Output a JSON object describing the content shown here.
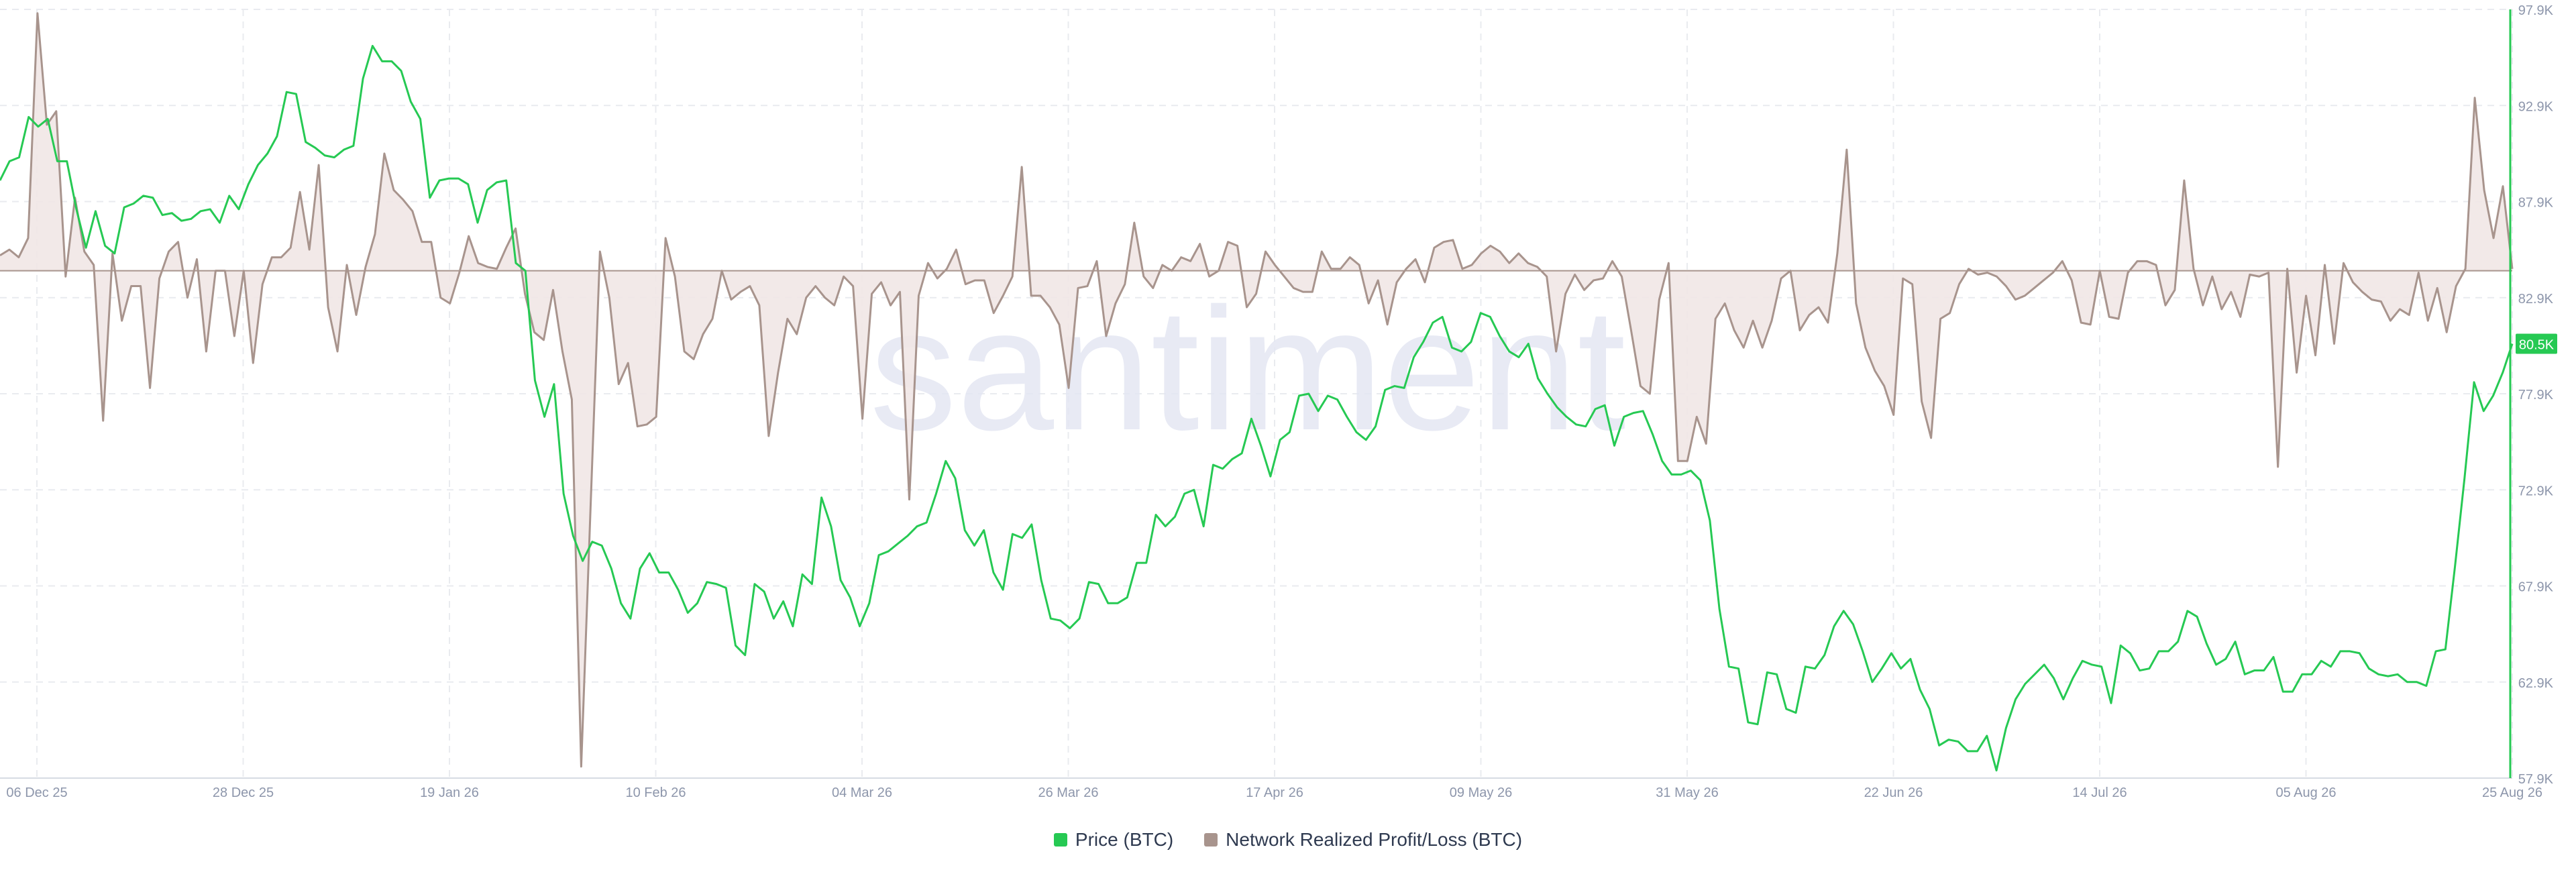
{
  "watermark": "santiment",
  "colors": {
    "price": "#26c953",
    "profit_loss_line": "#a8948d",
    "profit_loss_fill": "#f1e7e6",
    "grid": "#e9ebef",
    "axis_text": "#8d96ab",
    "watermark": "#e4e7f3",
    "current_badge_bg": "#26c953"
  },
  "legend": [
    {
      "label": "Price (BTC)",
      "color": "#26c953"
    },
    {
      "label": "Network Realized Profit/Loss (BTC)",
      "color": "#a8948d"
    }
  ],
  "chart_data": {
    "type": "line",
    "x_ticks": [
      "06 Dec 25",
      "28 Dec 25",
      "19 Jan 26",
      "10 Feb 26",
      "04 Mar 26",
      "26 Mar 26",
      "17 Apr 26",
      "09 May 26",
      "31 May 26",
      "22 Jun 26",
      "14 Jul 26",
      "05 Aug 26",
      "25 Aug 26"
    ],
    "y_ticks": [
      "97.9K",
      "92.9K",
      "87.9K",
      "82.9K",
      "77.9K",
      "72.9K",
      "67.9K",
      "62.9K",
      "57.9K"
    ],
    "ylim": [
      57900,
      97900
    ],
    "y_axis_side": "right",
    "current_price_label": "80.5K",
    "current_price": 80500,
    "x_start": "2025-12-05",
    "x_end": "2026-08-25",
    "grid": true,
    "legend_position": "bottom-center",
    "series": [
      {
        "name": "Price (BTC)",
        "values": [
          89000,
          90000,
          90200,
          92300,
          91800,
          92200,
          90000,
          90000,
          87500,
          85500,
          87400,
          85600,
          85200,
          87600,
          87800,
          88200,
          88100,
          87200,
          87300,
          86900,
          87000,
          87400,
          87500,
          86800,
          88200,
          87500,
          88800,
          89800,
          90400,
          91300,
          93600,
          93500,
          91000,
          90700,
          90300,
          90200,
          90600,
          90800,
          94300,
          96000,
          95200,
          95200,
          94700,
          93100,
          92200,
          88100,
          89000,
          89100,
          89100,
          88800,
          86800,
          88500,
          88900,
          89000,
          84700,
          84300,
          78600,
          76700,
          78400,
          72700,
          70500,
          69200,
          70200,
          70000,
          68800,
          67000,
          66200,
          68800,
          69600,
          68600,
          68600,
          67700,
          66500,
          67000,
          68100,
          68000,
          67800,
          64800,
          64300,
          68000,
          67600,
          66200,
          67100,
          65800,
          68500,
          68000,
          72500,
          71000,
          68200,
          67300,
          65800,
          67000,
          69500,
          69700,
          70100,
          70500,
          71000,
          71200,
          72700,
          74400,
          73500,
          70800,
          70000,
          70800,
          68600,
          67700,
          70600,
          70400,
          71100,
          68200,
          66200,
          66100,
          65700,
          66200,
          68100,
          68000,
          67000,
          67000,
          67300,
          69100,
          69100,
          71600,
          71000,
          71500,
          72700,
          72900,
          71000,
          74200,
          74000,
          74500,
          74800,
          76600,
          75200,
          73600,
          75500,
          75900,
          77800,
          77900,
          77000,
          77800,
          77600,
          76700,
          75900,
          75500,
          76200,
          78100,
          78300,
          78200,
          79800,
          80600,
          81600,
          81900,
          80300,
          80100,
          80600,
          82100,
          81900,
          80900,
          80100,
          79800,
          80500,
          78700,
          77900,
          77200,
          76700,
          76300,
          76200,
          77100,
          77300,
          75200,
          76700,
          76900,
          77000,
          75800,
          74400,
          73700,
          73700,
          73900,
          73400,
          71300,
          66700,
          63700,
          63600,
          60800,
          60700,
          63400,
          63300,
          61500,
          61300,
          63700,
          63600,
          64300,
          65800,
          66600,
          65900,
          64500,
          62900,
          63600,
          64400,
          63600,
          64100,
          62500,
          61500,
          59600,
          59900,
          59800,
          59300,
          59300,
          60100,
          58300,
          60500,
          62000,
          62800,
          63300,
          63800,
          63100,
          62000,
          63100,
          64000,
          63800,
          63700,
          61800,
          64800,
          64400,
          63500,
          63600,
          64500,
          64500,
          65000,
          66600,
          66300,
          64900,
          63800,
          64100,
          65000,
          63300,
          63500,
          63500,
          64200,
          62400,
          62400,
          63300,
          63300,
          64000,
          63700,
          64500,
          64500,
          64400,
          63600,
          63300,
          63200,
          63300,
          62900,
          62900,
          62700,
          64500,
          64600,
          68900,
          73500,
          78500,
          77000,
          77800,
          79000,
          80500
        ]
      },
      {
        "name": "Network Realized Profit/Loss (BTC)",
        "zero_level": 84300,
        "values": [
          85100,
          85400,
          85000,
          86000,
          97700,
          91900,
          92600,
          84000,
          88100,
          85300,
          84600,
          76500,
          85200,
          81700,
          83500,
          83500,
          78200,
          83900,
          85300,
          85800,
          82900,
          84900,
          80100,
          84300,
          84300,
          80900,
          84300,
          79500,
          83600,
          85000,
          85000,
          85500,
          88400,
          85400,
          89800,
          82400,
          80100,
          84600,
          82000,
          84500,
          86200,
          90400,
          88500,
          88000,
          87400,
          85800,
          85800,
          82900,
          82600,
          84200,
          86100,
          84700,
          84500,
          84400,
          85500,
          86500,
          83100,
          81100,
          80700,
          83300,
          80100,
          77600,
          58500,
          72000,
          85300,
          82900,
          78400,
          79500,
          76200,
          76300,
          76700,
          86000,
          84000,
          80100,
          79700,
          81000,
          81800,
          84300,
          82800,
          83200,
          83500,
          82500,
          75700,
          79000,
          81800,
          81000,
          82900,
          83500,
          82900,
          82500,
          84000,
          83500,
          76600,
          83100,
          83700,
          82500,
          83200,
          72400,
          83000,
          84700,
          83900,
          84400,
          85400,
          83600,
          83800,
          83800,
          82100,
          83000,
          84000,
          89700,
          83000,
          83000,
          82400,
          81500,
          78200,
          83400,
          83500,
          84800,
          80900,
          82600,
          83600,
          86800,
          84000,
          83400,
          84600,
          84300,
          85000,
          84800,
          85700,
          84000,
          84300,
          85800,
          85600,
          82400,
          83100,
          85300,
          84600,
          84000,
          83400,
          83200,
          83200,
          85300,
          84400,
          84400,
          85000,
          84600,
          82600,
          83800,
          81500,
          83700,
          84400,
          84900,
          83700,
          85500,
          85800,
          85900,
          84400,
          84600,
          85200,
          85600,
          85300,
          84700,
          85200,
          84700,
          84500,
          84000,
          80100,
          83100,
          84100,
          83300,
          83800,
          83900,
          84800,
          84000,
          81200,
          78300,
          77900,
          82800,
          84700,
          74400,
          74400,
          76700,
          75300,
          81800,
          82600,
          81200,
          80300,
          81700,
          80300,
          81700,
          83900,
          84300,
          81200,
          82000,
          82400,
          81600,
          85200,
          90600,
          82600,
          80300,
          79100,
          78300,
          76800,
          83900,
          83600,
          77500,
          75600,
          81800,
          82100,
          83600,
          84400,
          84100,
          84200,
          84000,
          83500,
          82800,
          83000,
          83400,
          83800,
          84200,
          84800,
          83800,
          81600,
          81500,
          84300,
          81900,
          81800,
          84200,
          84800,
          84800,
          84600,
          82500,
          83300,
          89000,
          84400,
          82500,
          84000,
          82300,
          83200,
          81900,
          84100,
          84000,
          84200,
          74100,
          84400,
          79000,
          83000,
          79900,
          84600,
          80500,
          84700,
          83700,
          83200,
          82800,
          82700,
          81700,
          82300,
          82000,
          84200,
          81700,
          83400,
          81100,
          83500,
          84400,
          93300,
          88500,
          86000,
          88700,
          84400
        ]
      }
    ]
  }
}
